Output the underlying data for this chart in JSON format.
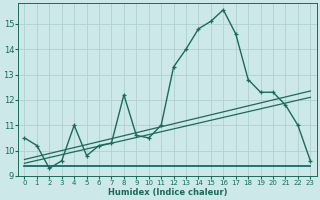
{
  "title": "",
  "xlabel": "Humidex (Indice chaleur)",
  "ylabel": "",
  "xlim": [
    -0.5,
    23.5
  ],
  "ylim": [
    9.0,
    15.8
  ],
  "bg_color": "#cce8e8",
  "grid_color": "#b0d0d0",
  "line_color": "#1a6b5a",
  "line_color_flat": "#006060",
  "xticks": [
    0,
    1,
    2,
    3,
    4,
    5,
    6,
    7,
    8,
    9,
    10,
    11,
    12,
    13,
    14,
    15,
    16,
    17,
    18,
    19,
    20,
    21,
    22,
    23
  ],
  "yticks": [
    9,
    10,
    11,
    12,
    13,
    14,
    15
  ],
  "curve1_x": [
    0,
    1,
    2,
    3,
    4,
    5,
    6,
    7,
    8,
    9,
    10,
    11,
    12,
    13,
    14,
    15,
    16,
    17,
    18,
    19,
    20,
    21,
    22,
    23
  ],
  "curve1_y": [
    10.5,
    10.2,
    9.3,
    9.6,
    11.0,
    9.8,
    10.2,
    10.3,
    12.2,
    10.6,
    10.5,
    11.0,
    13.3,
    14.0,
    14.8,
    15.1,
    15.55,
    14.6,
    12.8,
    12.3,
    12.3,
    11.8,
    11.0,
    9.6
  ],
  "flat_line_x": [
    0,
    23
  ],
  "flat_line_y": [
    9.4,
    9.4
  ],
  "trend1_x": [
    0,
    23
  ],
  "trend1_y": [
    9.5,
    12.1
  ],
  "trend2_x": [
    0,
    23
  ],
  "trend2_y": [
    9.65,
    12.35
  ]
}
